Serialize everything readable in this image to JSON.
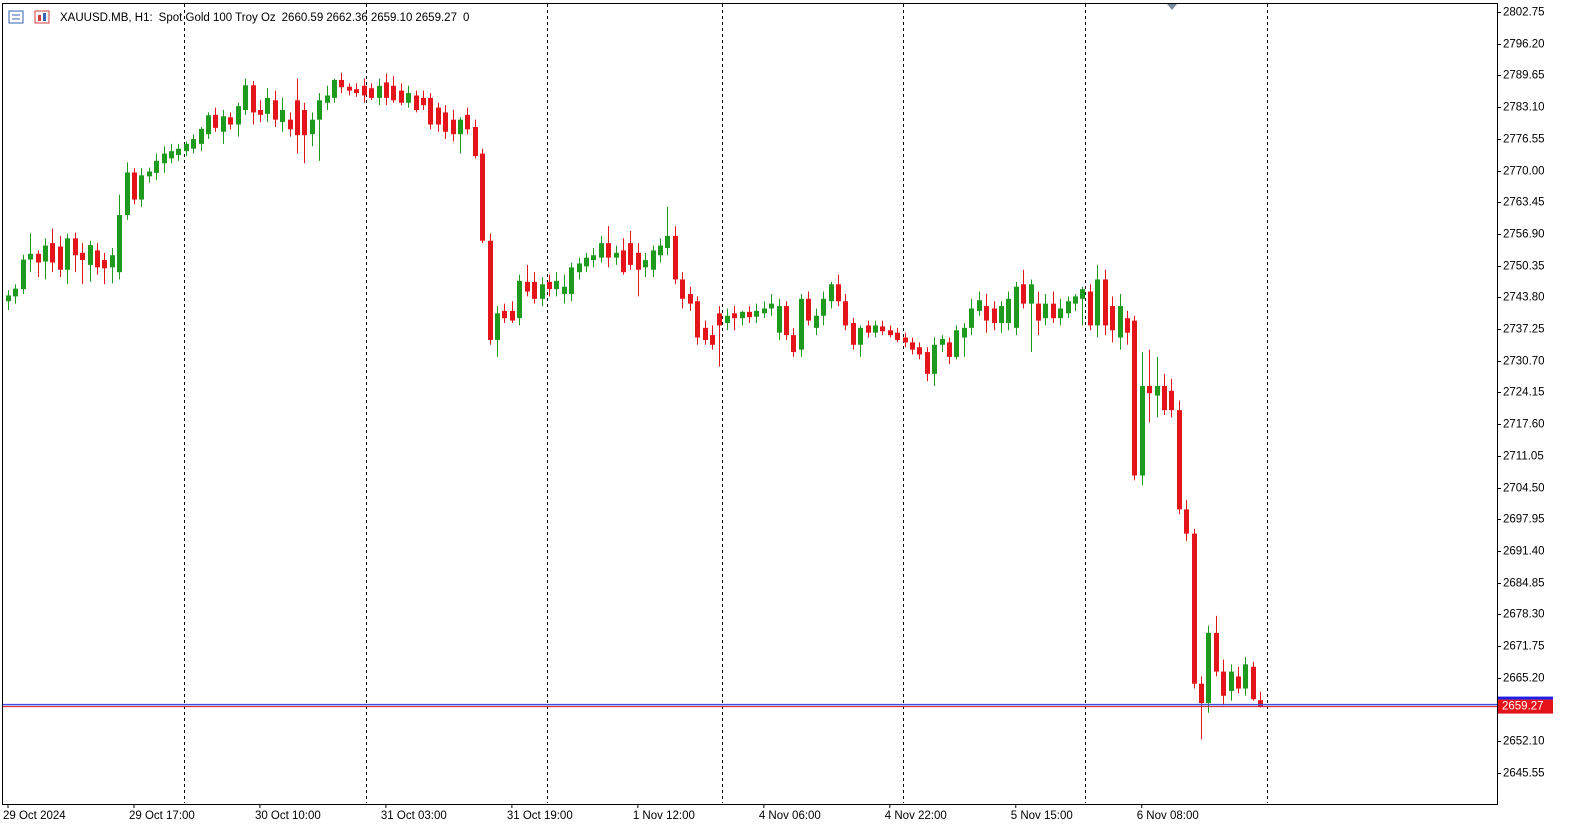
{
  "chart_data": {
    "type": "candlestick",
    "symbol": "XAUUSD.MB, H1:",
    "description": "Spot Gold 100 Troy Oz",
    "last_bar_labels": [
      "2660.59",
      "2662.36",
      "2659.10",
      "2659.27"
    ],
    "volume": 0,
    "up_color": "#1e9b1e",
    "down_color": "#e5141b",
    "ylim": [
      2639.15,
      2804.6
    ],
    "yticks": [
      2802.75,
      {
        "value": 2796.2,
        "label": "2796.20"
      },
      2789.65,
      {
        "value": 2783.1,
        "label": "2783.10"
      },
      2776.55,
      {
        "value": 2770,
        "label": "2770.00"
      },
      2763.45,
      {
        "value": 2756.9,
        "label": "2756.90"
      },
      2750.35,
      {
        "value": 2743.8,
        "label": "2743.80"
      },
      2737.25,
      {
        "value": 2730.7,
        "label": "2730.70"
      },
      2724.15,
      {
        "value": 2717.6,
        "label": "2717.60"
      },
      2711.05,
      {
        "value": 2704.5,
        "label": "2704.50"
      },
      2697.95,
      {
        "value": 2691.4,
        "label": "2691.40"
      },
      2684.85,
      {
        "value": 2678.3,
        "label": "2678.30"
      },
      2671.75,
      {
        "value": 2665.2,
        "label": "2665.20"
      },
      {
        "value": 2652.1,
        "label": "2652.10"
      },
      2645.55
    ],
    "categories": [
      "29 Oct 2024",
      null,
      null,
      null,
      null,
      null,
      null,
      null,
      null,
      null,
      null,
      null,
      null,
      null,
      null,
      null,
      null,
      "29 Oct 17:00",
      null,
      null,
      null,
      null,
      null,
      null,
      null,
      null,
      null,
      null,
      null,
      null,
      null,
      null,
      null,
      null,
      "30 Oct 10:00",
      null,
      null,
      null,
      null,
      null,
      null,
      null,
      null,
      null,
      null,
      null,
      null,
      null,
      null,
      null,
      null,
      "31 Oct 03:00",
      null,
      null,
      null,
      null,
      null,
      null,
      null,
      null,
      null,
      null,
      null,
      null,
      null,
      null,
      null,
      null,
      "31 Oct 19:00",
      null,
      null,
      null,
      null,
      null,
      null,
      null,
      null,
      null,
      null,
      null,
      null,
      null,
      null,
      null,
      null,
      "1 Nov 12:00",
      null,
      null,
      null,
      null,
      null,
      null,
      null,
      null,
      null,
      null,
      null,
      null,
      null,
      null,
      null,
      null,
      "4 Nov 06:00",
      null,
      null,
      null,
      null,
      null,
      null,
      null,
      null,
      null,
      null,
      null,
      null,
      null,
      null,
      null,
      null,
      "4 Nov 22:00",
      null,
      null,
      null,
      null,
      null,
      null,
      null,
      null,
      null,
      null,
      null,
      null,
      null,
      null,
      null,
      null,
      "5 Nov 15:00",
      null,
      null,
      null,
      null,
      null,
      null,
      null,
      null,
      null,
      null,
      null,
      null,
      null,
      null,
      null,
      null,
      "6 Nov 08:00",
      null,
      null,
      null,
      null,
      null,
      null,
      null,
      null,
      null,
      null,
      null,
      null,
      null,
      null,
      null,
      null
    ],
    "open": [
      2743.0,
      2744.0,
      2745.5,
      2751.6,
      2752.8,
      2751.2,
      2755.0,
      2754.3,
      2749.5,
      2756.0,
      2753.0,
      2750.5,
      2753.5,
      2751.5,
      2750.0,
      2749.0,
      2760.8,
      2769.6,
      2764.0,
      2768.8,
      2769.5,
      2771.5,
      2772.5,
      2773.2,
      2774.0,
      2774.5,
      2775.5,
      2777.5,
      2781.5,
      2778.0,
      2781.0,
      2779.5,
      2782.5,
      2787.6,
      2782.5,
      2781.7,
      2784.5,
      2780.0,
      2780.5,
      2784.5,
      2782.5,
      2777.5,
      2780.5,
      2784.0,
      2785.0,
      2788.7,
      2787.3,
      2786.8,
      2787.5,
      2787.0,
      2785.0,
      2788.2,
      2787.5,
      2786.5,
      2784.0,
      2785.5,
      2785.0,
      2785.0,
      2783.0,
      2782.0,
      2780.5,
      2777.5,
      2781.5,
      2779.0,
      2773.5,
      2755.5,
      2735.0,
      2741.0,
      2741.0,
      2739.5,
      2747.0,
      2747.0,
      2743.5,
      2747.0,
      2745.5,
      2744.5,
      2744.5,
      2749.0,
      2750.2,
      2751.5,
      2752.0,
      2755.0,
      2752.0,
      2753.5,
      2755.0,
      2753.0,
      2750.0,
      2749.5,
      2752.5,
      2754.0,
      2756.5,
      2747.5,
      2744.5,
      2743.0,
      2737.5,
      2736.0,
      2740.5,
      2738.5,
      2740.5,
      2739.5,
      2740.8,
      2739.8,
      2740.5,
      2741.5,
      2736.5,
      2742.0,
      2736.0,
      2733.0,
      2743.5,
      2737.5,
      2740.0,
      2743.0,
      2746.5,
      2743.0,
      2738.5,
      2734.0,
      2738.0,
      2736.5,
      2737.8,
      2737.0,
      2736.5,
      2735.5,
      2734.5,
      2733.5,
      2732.5,
      2728.0,
      2734.0,
      2734.5,
      2731.5,
      2735.5,
      2737.5,
      2741.0,
      2742.0,
      2741.5,
      2738.5,
      2738.5,
      2737.5,
      2746.5,
      2742.5,
      2742.5,
      2739.5,
      2742.5,
      2739.5,
      2740.5,
      2742.5,
      2743.5,
      2745.0,
      2738.0,
      2747.5,
      2742.0,
      2735.5,
      2739.5,
      2739.0,
      2707.0,
      2725.5,
      2723.5,
      2725.5,
      2724.5,
      2720.5,
      2700.0,
      2695.0,
      2664.0,
      2660.0,
      2674.5,
      2666.5,
      2662.5,
      2665.5,
      2663.0,
      2667.5,
      2660.59
    ],
    "high": [
      2745.3,
      2746.5,
      2752.6,
      2757.0,
      2753.5,
      2756.0,
      2758.0,
      2756.5,
      2757.0,
      2757.2,
      2755.0,
      2755.5,
      2755.0,
      2753.0,
      2754.0,
      2765.0,
      2771.7,
      2770.5,
      2770.5,
      2770.6,
      2773.5,
      2775.0,
      2775.5,
      2775.5,
      2776.0,
      2777.5,
      2779.0,
      2782.0,
      2783.0,
      2782.5,
      2782.0,
      2784.0,
      2789.0,
      2788.5,
      2784.5,
      2787.0,
      2786.5,
      2785.0,
      2782.0,
      2789.0,
      2784.0,
      2782.0,
      2786.0,
      2787.5,
      2789.0,
      2790.2,
      2788.0,
      2788.0,
      2789.0,
      2788.0,
      2789.0,
      2790.0,
      2789.5,
      2788.0,
      2787.5,
      2786.5,
      2786.5,
      2786.0,
      2784.0,
      2783.5,
      2782.5,
      2781.0,
      2783.0,
      2780.5,
      2774.5,
      2757.0,
      2742.0,
      2742.5,
      2743.0,
      2748.5,
      2750.5,
      2749.0,
      2748.0,
      2748.5,
      2749.0,
      2748.5,
      2751.0,
      2752.0,
      2753.0,
      2754.0,
      2756.5,
      2758.5,
      2754.5,
      2756.0,
      2757.5,
      2755.0,
      2753.0,
      2754.5,
      2756.0,
      2762.5,
      2758.5,
      2749.0,
      2746.0,
      2744.0,
      2739.0,
      2738.0,
      2742.0,
      2741.5,
      2742.0,
      2741.0,
      2742.0,
      2742.5,
      2743.0,
      2744.5,
      2743.5,
      2743.0,
      2737.5,
      2744.5,
      2745.0,
      2741.5,
      2745.0,
      2747.0,
      2748.5,
      2744.5,
      2739.5,
      2738.0,
      2739.0,
      2739.0,
      2739.0,
      2738.0,
      2737.5,
      2736.5,
      2735.5,
      2734.5,
      2733.5,
      2735.5,
      2736.0,
      2735.5,
      2738.0,
      2738.5,
      2743.5,
      2745.0,
      2744.5,
      2743.0,
      2743.0,
      2745.0,
      2747.0,
      2749.5,
      2747.5,
      2745.0,
      2744.5,
      2745.0,
      2743.5,
      2744.0,
      2744.5,
      2746.0,
      2746.5,
      2750.5,
      2749.5,
      2744.0,
      2744.5,
      2741.0,
      2740.0,
      2732.5,
      2733.0,
      2731.5,
      2728.0,
      2727.0,
      2722.5,
      2702.0,
      2696.0,
      2665.5,
      2676.0,
      2678.0,
      2669.0,
      2668.0,
      2667.5,
      2669.5,
      2668.5,
      2662.36
    ],
    "low": [
      2741.2,
      2742.5,
      2744.5,
      2749.0,
      2748.0,
      2747.5,
      2749.0,
      2748.0,
      2746.5,
      2749.0,
      2746.5,
      2747.0,
      2748.5,
      2746.5,
      2746.7,
      2747.5,
      2759.8,
      2763.0,
      2762.5,
      2767.5,
      2768.0,
      2769.5,
      2771.5,
      2772.0,
      2773.0,
      2773.5,
      2774.0,
      2776.5,
      2778.0,
      2775.5,
      2778.5,
      2777.0,
      2781.5,
      2779.5,
      2780.0,
      2780.0,
      2779.0,
      2778.0,
      2777.0,
      2773.5,
      2771.5,
      2775.0,
      2772.0,
      2782.5,
      2784.0,
      2786.0,
      2785.5,
      2785.2,
      2784.0,
      2784.5,
      2783.5,
      2783.5,
      2784.0,
      2783.5,
      2783.0,
      2782.0,
      2782.5,
      2778.5,
      2778.0,
      2776.5,
      2776.0,
      2773.5,
      2777.5,
      2772.5,
      2755.0,
      2734.0,
      2731.5,
      2738.5,
      2738.5,
      2738.0,
      2744.0,
      2742.5,
      2742.0,
      2744.0,
      2744.0,
      2742.5,
      2743.0,
      2747.5,
      2749.0,
      2750.0,
      2751.0,
      2750.0,
      2750.5,
      2748.5,
      2749.5,
      2744.0,
      2748.0,
      2748.0,
      2751.0,
      2752.5,
      2746.5,
      2741.5,
      2741.0,
      2734.0,
      2734.0,
      2733.0,
      2729.5,
      2737.0,
      2737.0,
      2738.0,
      2738.5,
      2738.5,
      2739.5,
      2740.0,
      2735.0,
      2735.0,
      2731.5,
      2731.5,
      2738.0,
      2736.0,
      2738.0,
      2741.5,
      2742.0,
      2737.0,
      2733.0,
      2731.5,
      2735.5,
      2735.5,
      2736.0,
      2735.5,
      2734.5,
      2733.5,
      2732.0,
      2731.0,
      2726.5,
      2725.5,
      2732.5,
      2730.0,
      2731.0,
      2731.5,
      2736.0,
      2740.0,
      2736.5,
      2737.0,
      2736.5,
      2737.0,
      2736.0,
      2741.5,
      2732.5,
      2736.0,
      2738.0,
      2738.5,
      2738.0,
      2739.5,
      2741.0,
      2738.0,
      2737.0,
      2735.5,
      2736.0,
      2734.5,
      2733.0,
      2734.0,
      2706.0,
      2705.0,
      2718.0,
      2719.0,
      2719.5,
      2719.0,
      2699.0,
      2693.5,
      2663.0,
      2652.5,
      2658.0,
      2665.5,
      2659.5,
      2660.5,
      2662.0,
      2661.5,
      2660.5,
      2659.1
    ],
    "close": [
      2744.2,
      2745.6,
      2751.6,
      2752.8,
      2751.0,
      2754.5,
      2751.0,
      2749.5,
      2756.0,
      2752.5,
      2751.5,
      2754.6,
      2750.0,
      2749.8,
      2752.5,
      2760.8,
      2769.6,
      2764.0,
      2769.0,
      2769.8,
      2772.0,
      2773.5,
      2774.0,
      2774.5,
      2775.5,
      2776.5,
      2778.6,
      2781.4,
      2778.8,
      2781.2,
      2779.5,
      2783.3,
      2787.6,
      2782.0,
      2781.5,
      2785.0,
      2780.5,
      2782.5,
      2778.5,
      2777.3,
      2777.3,
      2780.5,
      2784.5,
      2785.5,
      2788.7,
      2787.2,
      2786.5,
      2786.0,
      2785.5,
      2785.0,
      2787.5,
      2785.0,
      2784.5,
      2784.0,
      2786.0,
      2782.5,
      2783.5,
      2779.5,
      2779.5,
      2778.0,
      2777.5,
      2780.5,
      2778.5,
      2773.0,
      2755.5,
      2735.0,
      2740.5,
      2739.5,
      2739.0,
      2747.2,
      2745.0,
      2743.5,
      2746.5,
      2745.5,
      2747.2,
      2746.0,
      2750.0,
      2750.8,
      2752.0,
      2752.5,
      2755.0,
      2752.0,
      2753.0,
      2749.0,
      2750.5,
      2749.5,
      2751.5,
      2753.5,
      2754.5,
      2756.5,
      2747.5,
      2743.5,
      2742.5,
      2735.5,
      2735.0,
      2734.0,
      2738.0,
      2740.0,
      2739.5,
      2740.8,
      2739.7,
      2741.0,
      2741.5,
      2742.5,
      2742.0,
      2736.0,
      2732.5,
      2743.5,
      2739.0,
      2740.0,
      2743.5,
      2746.5,
      2743.0,
      2738.0,
      2734.0,
      2737.5,
      2736.5,
      2738.0,
      2736.8,
      2736.0,
      2735.0,
      2734.5,
      2733.0,
      2732.0,
      2728.0,
      2734.0,
      2735.2,
      2731.5,
      2737.0,
      2737.5,
      2741.5,
      2743.2,
      2739.0,
      2738.5,
      2742.0,
      2743.5,
      2746.0,
      2742.5,
      2746.5,
      2739.0,
      2742.5,
      2739.5,
      2741.5,
      2743.0,
      2744.0,
      2745.5,
      2738.0,
      2747.5,
      2738.0,
      2737.0,
      2742.0,
      2736.5,
      2707.0,
      2725.5,
      2724.0,
      2725.5,
      2720.5,
      2720.5,
      2700.0,
      2695.0,
      2664.0,
      2660.0,
      2674.5,
      2666.5,
      2661.5,
      2666.5,
      2663.0,
      2668.0,
      2660.8,
      2659.27
    ]
  }
}
